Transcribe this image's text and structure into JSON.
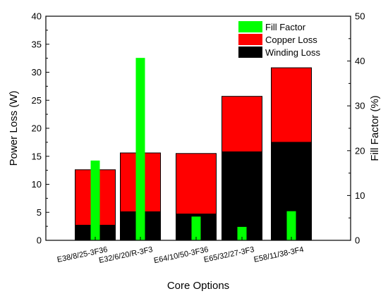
{
  "chart_data": {
    "type": "bar",
    "categories": [
      "E38/8/25-3F36",
      "E32/6/20/R-3F3",
      "E64/10/50-3F36",
      "E65/32/27-3F3",
      "E58/11/38-3F4"
    ],
    "xlabel": "Core Options",
    "ylabel_left": "Power Loss (W)",
    "ylabel_right": "Fill Factor (%)",
    "ylim_left": [
      0,
      40
    ],
    "ylim_right": [
      0,
      50
    ],
    "yticks_left": [
      "0",
      "5",
      "10",
      "15",
      "20",
      "25",
      "30",
      "35",
      "40"
    ],
    "yticks_right": [
      "0",
      "10",
      "20",
      "30",
      "40",
      "50"
    ],
    "series": [
      {
        "name": "Fill Factor",
        "axis": "right",
        "color": "#00ff00",
        "values": [
          17.8,
          40.7,
          5.3,
          3.0,
          6.5
        ]
      },
      {
        "name": "Copper Loss",
        "axis": "left",
        "color": "#ff0000",
        "values": [
          12.6,
          15.6,
          15.5,
          25.7,
          30.8
        ]
      },
      {
        "name": "Winding Loss",
        "axis": "left",
        "color": "#000000",
        "values": [
          2.7,
          5.1,
          4.7,
          15.8,
          17.5
        ]
      }
    ],
    "legend": {
      "position": "top-right"
    },
    "grid": false
  }
}
